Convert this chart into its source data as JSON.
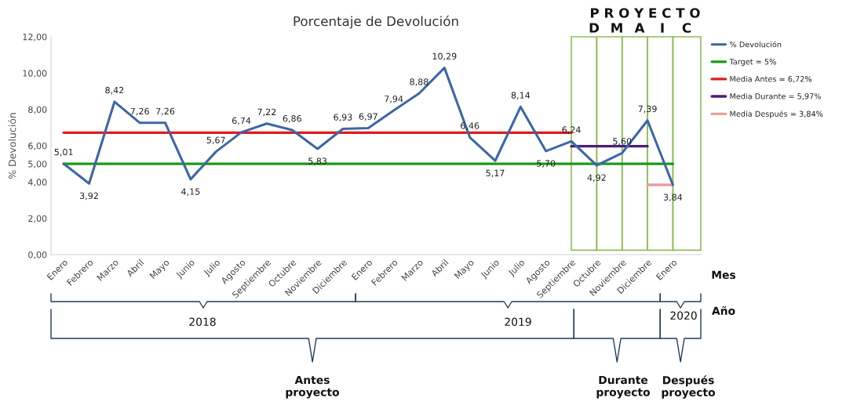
{
  "chart_data": {
    "type": "line",
    "title": "Porcentaje de Devolución",
    "ylabel": "% Devolución",
    "categories": [
      "Enero",
      "Febrero",
      "Marzo",
      "Abril",
      "Mayo",
      "Junio",
      "Julio",
      "Agosto",
      "Septiembre",
      "Octubre",
      "Noviembre",
      "Diciembre",
      "Enero",
      "Febrero",
      "Marzo",
      "Abril",
      "Mayo",
      "Junio",
      "Julio",
      "Agosto",
      "Septiembre",
      "Octubre",
      "Noviembre",
      "Diciembre",
      "Enero"
    ],
    "series": [
      {
        "name": "% Devolución",
        "color": "#3c67a5",
        "values": [
          5.01,
          3.92,
          8.42,
          7.26,
          7.26,
          4.15,
          5.67,
          6.74,
          7.22,
          6.86,
          5.83,
          6.93,
          6.97,
          7.94,
          8.88,
          10.29,
          6.46,
          5.17,
          8.14,
          5.7,
          6.24,
          4.92,
          5.6,
          7.39,
          3.84
        ],
        "value_labels": [
          "5,01",
          "3,92",
          "8,42",
          "7,26",
          "7,26",
          "4,15",
          "5,67",
          "6,74",
          "7,22",
          "6,86",
          "5,83",
          "6,93",
          "6,97",
          "7,94",
          "8,88",
          "10,29",
          "6,46",
          "5,17",
          "8,14",
          "5,70",
          "6,24",
          "4,92",
          "5,60",
          "7,39",
          "3,84"
        ]
      },
      {
        "name": "Target = 5%",
        "color": "#1a9a1a",
        "values": [
          5,
          5,
          5,
          5,
          5,
          5,
          5,
          5,
          5,
          5,
          5,
          5,
          5,
          5,
          5,
          5,
          5,
          5,
          5,
          5,
          5,
          5,
          5,
          5,
          5
        ]
      },
      {
        "name": "Media Antes = 6,72%",
        "color": "#e31a1c",
        "values": [
          6.72,
          6.72,
          6.72,
          6.72,
          6.72,
          6.72,
          6.72,
          6.72,
          6.72,
          6.72,
          6.72,
          6.72,
          6.72,
          6.72,
          6.72,
          6.72,
          6.72,
          6.72,
          6.72,
          6.72,
          6.72,
          null,
          null,
          null,
          null
        ]
      },
      {
        "name": "Media Durante = 5,97%",
        "color": "#4b1c7f",
        "values": [
          null,
          null,
          null,
          null,
          null,
          null,
          null,
          null,
          null,
          null,
          null,
          null,
          null,
          null,
          null,
          null,
          null,
          null,
          null,
          null,
          5.97,
          5.97,
          5.97,
          5.97,
          null
        ]
      },
      {
        "name": "Media Después = 3,84%",
        "color": "#e8a0a0",
        "values": [
          null,
          null,
          null,
          null,
          null,
          null,
          null,
          null,
          null,
          null,
          null,
          null,
          null,
          null,
          null,
          null,
          null,
          null,
          null,
          null,
          null,
          null,
          null,
          3.84,
          3.84
        ]
      }
    ],
    "ylim": [
      0,
      12
    ],
    "yticks": [
      {
        "value": 0,
        "label": "0,00"
      },
      {
        "value": 2,
        "label": "2,00"
      },
      {
        "value": 4,
        "label": "4,00"
      },
      {
        "value": 5,
        "label": "5,00"
      },
      {
        "value": 6,
        "label": "6,00"
      },
      {
        "value": 8,
        "label": "8,00"
      },
      {
        "value": 10,
        "label": "10,00"
      },
      {
        "value": 12,
        "label": "12,00"
      }
    ],
    "annotations": [
      "P R O Y E C T O",
      "D",
      "M",
      "A",
      "I",
      "C",
      "Mes",
      "Año",
      "2018",
      "2019",
      "2020",
      "Antes\nproyecto",
      "Durante\nproyecto",
      "Después\nproyecto"
    ],
    "legend": "right",
    "grid": false,
    "marker": "none",
    "line_style": "solid"
  }
}
